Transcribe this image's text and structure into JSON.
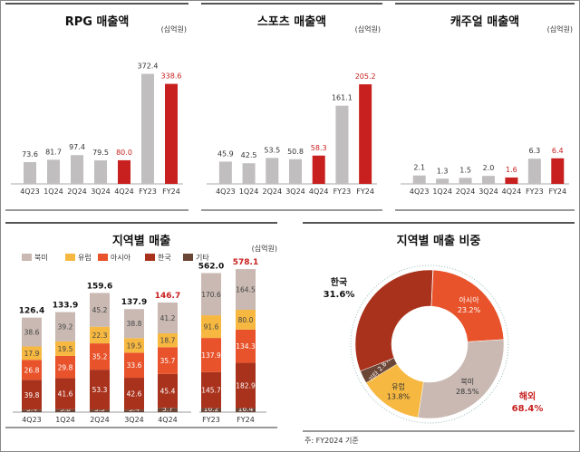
{
  "unit": "(십억원)",
  "chart_data": [
    {
      "type": "bar",
      "title": "RPG 매출액",
      "categories": [
        "4Q23",
        "1Q24",
        "2Q24",
        "3Q24",
        "4Q24",
        "FY23",
        "FY24"
      ],
      "values": [
        73.6,
        81.7,
        97.4,
        79.5,
        80.0,
        372.4,
        338.6
      ],
      "highlight": [
        "4Q24",
        "FY24"
      ],
      "ylim": [
        0,
        460
      ]
    },
    {
      "type": "bar",
      "title": "스포츠 매출액",
      "categories": [
        "4Q23",
        "1Q24",
        "2Q24",
        "3Q24",
        "4Q24",
        "FY23",
        "FY24"
      ],
      "values": [
        45.9,
        42.5,
        53.5,
        50.8,
        58.3,
        161.1,
        205.2
      ],
      "highlight": [
        "4Q24",
        "FY24"
      ],
      "ylim": [
        0,
        280
      ]
    },
    {
      "type": "bar",
      "title": "캐주얼 매출액",
      "categories": [
        "4Q23",
        "1Q24",
        "2Q24",
        "3Q24",
        "4Q24",
        "FY23",
        "FY24"
      ],
      "values": [
        2.1,
        1.3,
        1.5,
        2.0,
        1.6,
        6.3,
        6.4
      ],
      "highlight": [
        "4Q24",
        "FY24"
      ],
      "ylim": [
        0,
        34
      ]
    },
    {
      "type": "bar",
      "title": "지역별 매출",
      "stacked": true,
      "categories": [
        "4Q23",
        "1Q24",
        "2Q24",
        "3Q24",
        "4Q24",
        "FY23",
        "FY24"
      ],
      "totals": [
        "126.4",
        "133.9",
        "159.6",
        "137.9",
        "146.7",
        "562.0",
        "578.1"
      ],
      "highlight": [
        "4Q24",
        "FY24"
      ],
      "series": [
        {
          "name": "기타",
          "values": [
            3.4,
            3.8,
            3.5,
            3.4,
            5.7,
            16.2,
            16.4
          ]
        },
        {
          "name": "한국",
          "values": [
            39.8,
            41.6,
            53.3,
            42.6,
            45.4,
            145.7,
            182.9
          ]
        },
        {
          "name": "아시아",
          "values": [
            26.8,
            29.8,
            35.2,
            33.6,
            35.7,
            137.9,
            134.3
          ]
        },
        {
          "name": "유럽",
          "values": [
            17.9,
            19.5,
            22.3,
            19.5,
            18.7,
            91.6,
            80.0
          ]
        },
        {
          "name": "북미",
          "values": [
            38.6,
            39.2,
            45.2,
            38.8,
            41.2,
            170.6,
            164.5
          ]
        }
      ],
      "legend": [
        "북미",
        "유럽",
        "아시아",
        "한국",
        "기타"
      ],
      "ylim_quarterly": [
        0,
        200
      ],
      "ylim_fy": [
        0,
        604
      ]
    },
    {
      "type": "pie",
      "title": "지역별 매출 비중",
      "donut": true,
      "slices": [
        {
          "name": "아시아",
          "value": 23.2
        },
        {
          "name": "북미",
          "value": 28.5
        },
        {
          "name": "유럽",
          "value": 13.8
        },
        {
          "name": "기타",
          "value": 2.8
        },
        {
          "name": "한국",
          "value": 31.6
        }
      ],
      "labels": {
        "아시아": "23.2%",
        "북미": "28.5%",
        "유럽": "13.8%",
        "기타": "기타 2.8%",
        "한국": "31.6%"
      },
      "group_label": {
        "name": "해외",
        "value": "68.4%"
      },
      "note": "주: FY2024 기준"
    }
  ],
  "colors": {
    "bar": "#c0bebe",
    "highlight": "#c8201f",
    "북미": "#c9b9b2",
    "유럽": "#f6b840",
    "아시아": "#e8532b",
    "한국": "#a9321c",
    "기타": "#6b4637"
  }
}
